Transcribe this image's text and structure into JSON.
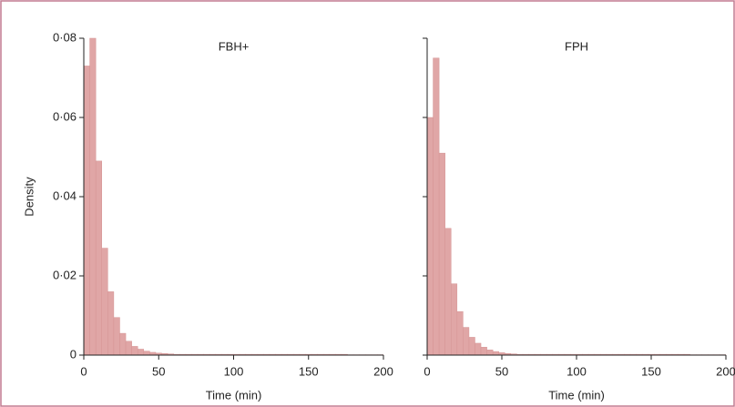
{
  "chart_data": [
    {
      "type": "histogram",
      "title": "FBH+",
      "xlabel": "Time (min)",
      "ylabel": "Density",
      "color": "#e0a6a6",
      "bins": [
        0,
        4,
        8,
        12,
        16,
        20,
        24,
        28,
        32,
        36,
        40,
        44,
        48,
        52,
        56,
        60,
        64,
        68,
        72,
        76,
        80,
        84,
        88,
        92,
        96,
        100,
        104,
        108,
        112,
        116,
        120,
        124,
        128,
        132,
        136,
        140,
        144,
        148,
        152,
        156,
        160,
        164,
        168,
        172,
        176,
        180,
        184,
        188,
        192,
        196,
        200
      ],
      "values": [
        0.073,
        0.08,
        0.049,
        0.027,
        0.016,
        0.0095,
        0.0055,
        0.0035,
        0.0022,
        0.0015,
        0.001,
        0.0007,
        0.0005,
        0.0004,
        0.0003,
        0.0002,
        0.0002,
        0.0002,
        0.0002,
        0.0002,
        0.0002,
        0.0002,
        0.0002,
        0.0002,
        0.0002,
        0.0002,
        0.0002,
        0.0002,
        0.0002,
        0.0002,
        0.0002,
        0.0002,
        0.0002,
        0.0002,
        0.0002,
        0.0002,
        0.0002,
        0.0002,
        0.0002,
        0.0002,
        0.0002,
        0.0002,
        0.0002,
        0.0002,
        0.0001,
        0.0001,
        0.0001,
        0.0001,
        0.0001,
        0.0001
      ],
      "xlim": [
        0,
        200
      ],
      "xticks": [
        0,
        50,
        100,
        150,
        200
      ],
      "ylim": [
        0,
        0.08
      ],
      "yticks": [
        {
          "value": 0,
          "label": "0"
        },
        {
          "value": 0.02,
          "label": "0·02"
        },
        {
          "value": 0.04,
          "label": "0·04"
        },
        {
          "value": 0.06,
          "label": "0·06"
        },
        {
          "value": 0.08,
          "label": "0·08"
        }
      ],
      "ytick_labels": true
    },
    {
      "type": "histogram",
      "title": "FPH",
      "xlabel": "Time (min)",
      "color": "#e0a6a6",
      "bins": [
        0,
        4,
        8,
        12,
        16,
        20,
        24,
        28,
        32,
        36,
        40,
        44,
        48,
        52,
        56,
        60,
        64,
        68,
        72,
        76,
        80,
        84,
        88,
        92,
        96,
        100,
        104,
        108,
        112,
        116,
        120,
        124,
        128,
        132,
        136,
        140,
        144,
        148,
        152,
        156,
        160,
        164,
        168,
        172,
        176,
        180,
        184,
        188,
        192,
        196,
        200
      ],
      "values": [
        0.06,
        0.075,
        0.051,
        0.032,
        0.018,
        0.011,
        0.007,
        0.0045,
        0.003,
        0.002,
        0.0013,
        0.0009,
        0.0006,
        0.0004,
        0.0003,
        0.0002,
        0.0002,
        0.0002,
        0.0002,
        0.0002,
        0.0002,
        0.0002,
        0.0002,
        0.0002,
        0.0002,
        0.0002,
        0.0002,
        0.0002,
        0.0002,
        0.0002,
        0.0002,
        0.0002,
        0.0002,
        0.0002,
        0.0002,
        0.0002,
        0.0002,
        0.0002,
        0.0002,
        0.0002,
        0.0002,
        0.0002,
        0.0002,
        0.0002,
        0.0001,
        0.0001,
        0.0001,
        0.0001,
        0.0001,
        0.0001
      ],
      "xlim": [
        0,
        200
      ],
      "xticks": [
        0,
        50,
        100,
        150,
        200
      ],
      "ylim": [
        0,
        0.08
      ],
      "yticks": [
        {
          "value": 0,
          "label": "0"
        },
        {
          "value": 0.02,
          "label": "0·02"
        },
        {
          "value": 0.04,
          "label": "0·04"
        },
        {
          "value": 0.06,
          "label": "0·06"
        },
        {
          "value": 0.08,
          "label": "0·08"
        }
      ],
      "ytick_labels": false
    }
  ]
}
